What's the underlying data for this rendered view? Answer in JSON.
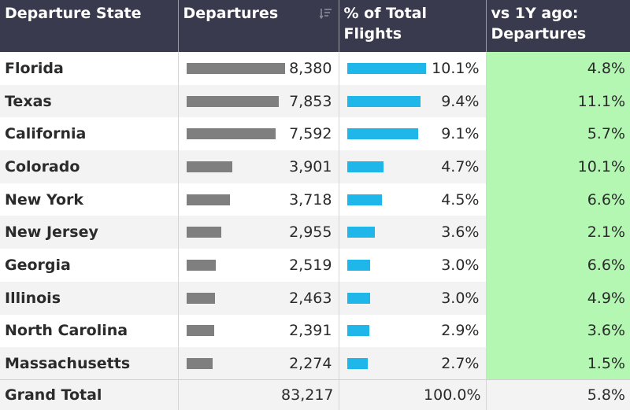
{
  "table": {
    "headers": {
      "state": "Departure State",
      "departures": "Departures",
      "pct_line1": "% of Total",
      "pct_line2": "Flights",
      "yoy_line1": "vs 1Y ago:",
      "yoy_line2": "Departures"
    },
    "sort_icon": "sort-descending-icon",
    "rows": [
      {
        "state": "Florida",
        "departures": "8,380",
        "departures_value": 8380,
        "pct": "10.1%",
        "pct_value": 10.1,
        "yoy": "4.8%"
      },
      {
        "state": "Texas",
        "departures": "7,853",
        "departures_value": 7853,
        "pct": "9.4%",
        "pct_value": 9.4,
        "yoy": "11.1%"
      },
      {
        "state": "California",
        "departures": "7,592",
        "departures_value": 7592,
        "pct": "9.1%",
        "pct_value": 9.1,
        "yoy": "5.7%"
      },
      {
        "state": "Colorado",
        "departures": "3,901",
        "departures_value": 3901,
        "pct": "4.7%",
        "pct_value": 4.7,
        "yoy": "10.1%"
      },
      {
        "state": "New York",
        "departures": "3,718",
        "departures_value": 3718,
        "pct": "4.5%",
        "pct_value": 4.5,
        "yoy": "6.6%"
      },
      {
        "state": "New Jersey",
        "departures": "2,955",
        "departures_value": 2955,
        "pct": "3.6%",
        "pct_value": 3.6,
        "yoy": "2.1%"
      },
      {
        "state": "Georgia",
        "departures": "2,519",
        "departures_value": 2519,
        "pct": "3.0%",
        "pct_value": 3.0,
        "yoy": "6.6%"
      },
      {
        "state": "Illinois",
        "departures": "2,463",
        "departures_value": 2463,
        "pct": "3.0%",
        "pct_value": 3.0,
        "yoy": "4.9%"
      },
      {
        "state": "North Carolina",
        "departures": "2,391",
        "departures_value": 2391,
        "pct": "2.9%",
        "pct_value": 2.9,
        "yoy": "3.6%"
      },
      {
        "state": "Massachusetts",
        "departures": "2,274",
        "departures_value": 2274,
        "pct": "2.7%",
        "pct_value": 2.7,
        "yoy": "1.5%"
      }
    ],
    "total": {
      "label": "Grand Total",
      "departures": "83,217",
      "pct": "100.0%",
      "yoy": "5.8%"
    }
  },
  "colors": {
    "header_bg": "#3a3a4e",
    "departures_bar": "#7f7f7f",
    "pct_bar": "#1fb7ea",
    "yoy_positive_bg": "#b3f7b3"
  }
}
